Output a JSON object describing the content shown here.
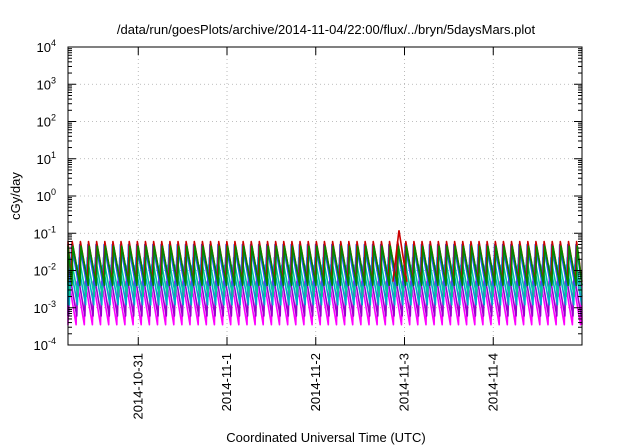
{
  "chart_data": {
    "type": "line",
    "title": "/data/run/goesPlots/archive/2014-11-04/22:00/flux/../bryn/5daysMars.plot",
    "xlabel": "Coordinated Universal Time (UTC)",
    "ylabel": "cGy/day",
    "yscale": "log",
    "ylim": [
      0.0001,
      10000
    ],
    "xlim": [
      "2014-10-30T05:00",
      "2014-11-05T00:00"
    ],
    "grid": true,
    "y_ticks": [
      {
        "mantissa": "10",
        "exp": "-4",
        "value": 0.0001
      },
      {
        "mantissa": "10",
        "exp": "-3",
        "value": 0.001
      },
      {
        "mantissa": "10",
        "exp": "-2",
        "value": 0.01
      },
      {
        "mantissa": "10",
        "exp": "-1",
        "value": 0.1
      },
      {
        "mantissa": "10",
        "exp": "0",
        "value": 1
      },
      {
        "mantissa": "10",
        "exp": "1",
        "value": 10
      },
      {
        "mantissa": "10",
        "exp": "2",
        "value": 100
      },
      {
        "mantissa": "10",
        "exp": "3",
        "value": 1000
      },
      {
        "mantissa": "10",
        "exp": "4",
        "value": 10000
      }
    ],
    "x_ticks": [
      "2014-10-31",
      "2014-11-1",
      "2014-11-2",
      "2014-11-3",
      "2014-11-4"
    ],
    "sawtooth_period_hours": 2.2,
    "series": [
      {
        "color": "#ff00ff",
        "peak": 0.005,
        "trough": 0.00035
      },
      {
        "color": "#9900cc",
        "peak": 0.008,
        "trough": 0.0006
      },
      {
        "color": "#00aacc",
        "peak": 0.014,
        "trough": 0.0012
      },
      {
        "color": "#00c8a0",
        "peak": 0.022,
        "trough": 0.002
      },
      {
        "color": "#2255ff",
        "peak": 0.05,
        "trough": 0.004
      },
      {
        "color": "#cc0000",
        "peak": 0.06,
        "trough": 0.005
      },
      {
        "color": "#008800",
        "peak": 0.045,
        "trough": 0.004
      }
    ],
    "spikes": [
      {
        "date": "2014-11-02T22:30",
        "value": 0.12,
        "color": "#cc0000"
      }
    ]
  }
}
